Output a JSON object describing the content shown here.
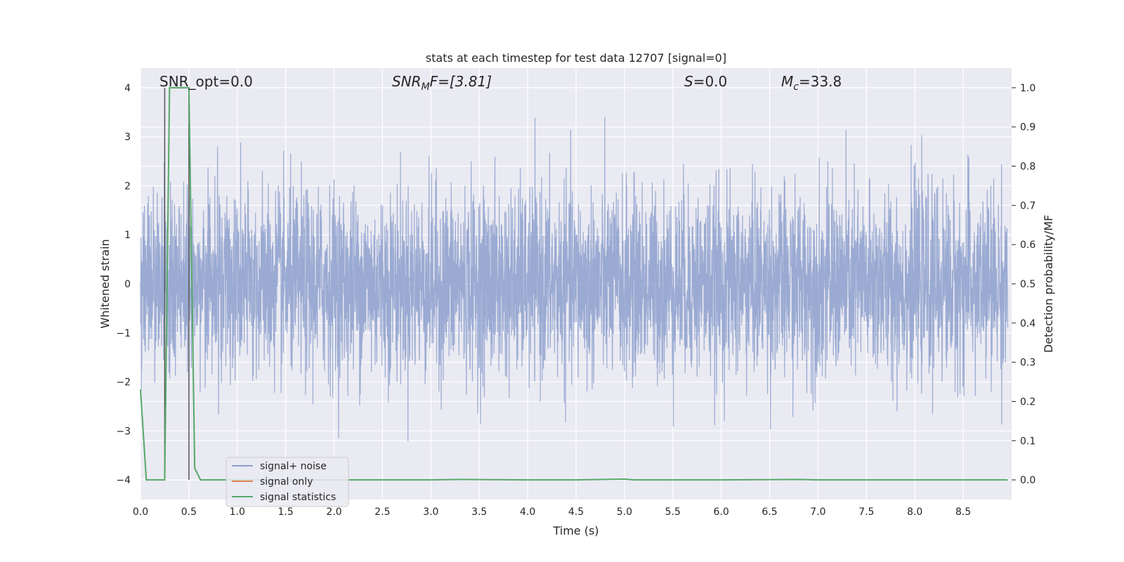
{
  "chart_data": {
    "type": "line",
    "title": "stats at each timestep for test data 12707 [signal=0]",
    "xlabel": "Time (s)",
    "ylabel_left": "Whitened strain",
    "ylabel_right": "Detection probability/MF",
    "xlim": [
      0,
      9
    ],
    "ylim_left": [
      -4.4,
      4.4
    ],
    "ylim_right": [
      -0.05,
      1.05
    ],
    "x_ticks": [
      0.0,
      0.5,
      1.0,
      1.5,
      2.0,
      2.5,
      3.0,
      3.5,
      4.0,
      4.5,
      5.0,
      5.5,
      6.0,
      6.5,
      7.0,
      7.5,
      8.0,
      8.5
    ],
    "x_tick_labels": [
      "0.0",
      "0.5",
      "1.0",
      "1.5",
      "2.0",
      "2.5",
      "3.0",
      "3.5",
      "4.0",
      "4.5",
      "5.0",
      "5.5",
      "6.0",
      "6.5",
      "7.0",
      "7.5",
      "8.0",
      "8.5"
    ],
    "y_left_ticks": [
      -4,
      -3,
      -2,
      -1,
      0,
      1,
      2,
      3,
      4
    ],
    "y_left_tick_labels": [
      "−4",
      "−3",
      "−2",
      "−1",
      "0",
      "1",
      "2",
      "3",
      "4"
    ],
    "y_right_ticks": [
      0.0,
      0.1,
      0.2,
      0.3,
      0.4,
      0.5,
      0.6,
      0.7,
      0.8,
      0.9,
      1.0
    ],
    "y_right_tick_labels": [
      "0.0",
      "0.1",
      "0.2",
      "0.3",
      "0.4",
      "0.5",
      "0.6",
      "0.7",
      "0.8",
      "0.9",
      "1.0"
    ],
    "grid": true,
    "legend_placement": "lower-left",
    "annotations": {
      "snr_opt": "SNR_opt=0.0",
      "snr_mf_prefix": "SNR",
      "snr_mf_sub": "M",
      "snr_mf_suffix": "F=[3.81]",
      "s_prefix": "S",
      "s_suffix": "=0.0",
      "mc_prefix": "M",
      "mc_sub": "c",
      "mc_suffix": "=33.8"
    },
    "vertical_lines_x": [
      0.25,
      0.5
    ],
    "series": [
      {
        "name": "signal+ noise",
        "axis": "left",
        "color": "#8c9fcc",
        "kind": "whitened noise, roughly ±1.5 with peaks to about ±4 over 0–9 s"
      },
      {
        "name": "signal only",
        "axis": "left",
        "color": "#dd8452",
        "values": []
      },
      {
        "name": "signal statistics",
        "axis": "right",
        "color": "#55a868",
        "x": [
          0.0,
          0.06,
          0.2,
          0.25,
          0.3,
          0.5,
          0.56,
          0.62,
          1.0,
          2.0,
          3.0,
          3.3,
          4.0,
          4.5,
          5.0,
          5.1,
          6.0,
          6.8,
          7.0,
          8.0,
          8.96
        ],
        "values": [
          0.23,
          0.0,
          0.0,
          0.0,
          1.0,
          1.0,
          0.03,
          0.0,
          0.0,
          0.0,
          0.0,
          0.001,
          0.0,
          0.0,
          0.002,
          0.0,
          0.0,
          0.001,
          0.0,
          0.0,
          0.0
        ]
      }
    ]
  }
}
